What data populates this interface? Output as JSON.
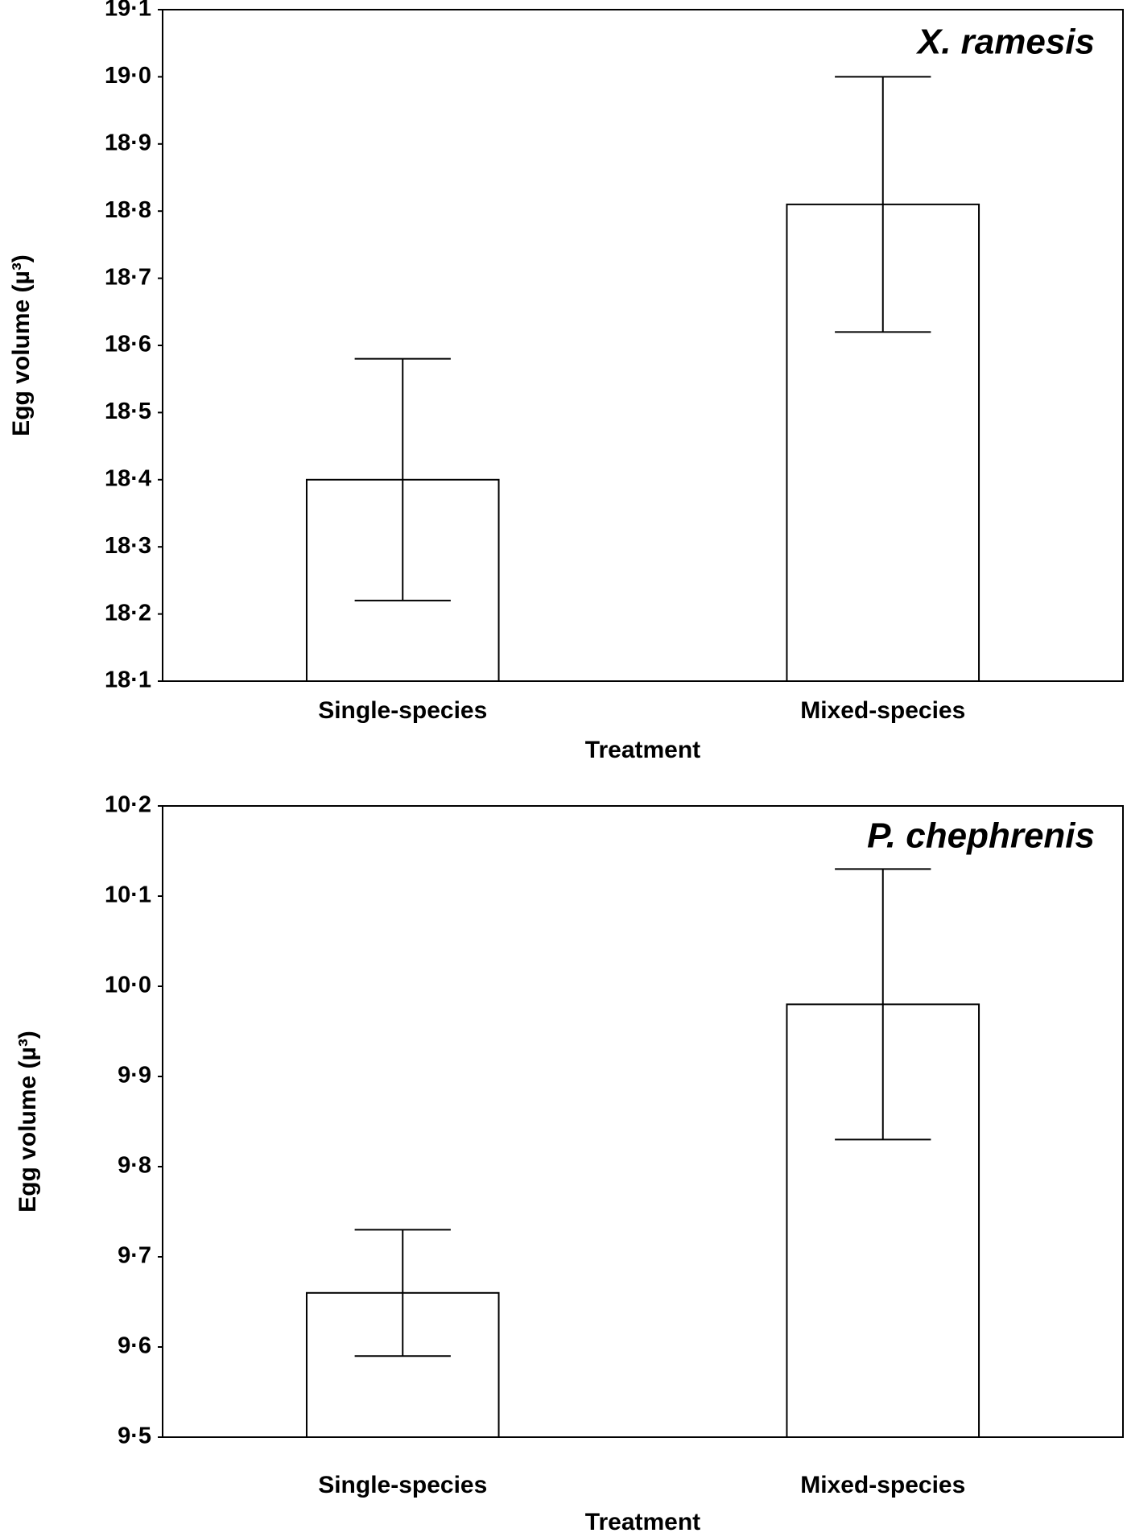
{
  "chart_data": [
    {
      "type": "bar",
      "annotation": "X. ramesis",
      "x_label": "Treatment",
      "y_label": "Egg volume (µ³)",
      "categories": [
        "Single-species",
        "Mixed-species"
      ],
      "values": [
        18.4,
        18.81
      ],
      "errors": [
        0.18,
        0.19
      ],
      "color": "#ffffff",
      "ylim": [
        18.1,
        19.1
      ],
      "yticks": [
        {
          "value": 18.1,
          "label": "18·1"
        },
        {
          "value": 18.2,
          "label": "18·2"
        },
        {
          "value": 18.3,
          "label": "18·3"
        },
        {
          "value": 18.4,
          "label": "18·4"
        },
        {
          "value": 18.5,
          "label": "18·5"
        },
        {
          "value": 18.6,
          "label": "18·6"
        },
        {
          "value": 18.7,
          "label": "18·7"
        },
        {
          "value": 18.8,
          "label": "18·8"
        },
        {
          "value": 18.9,
          "label": "18·9"
        },
        {
          "value": 19.0,
          "label": "19·0"
        },
        {
          "value": 19.1,
          "label": "19·1"
        }
      ]
    },
    {
      "type": "bar",
      "annotation": "P. chephrenis",
      "x_label": "Treatment",
      "y_label": "Egg volume (µ³)",
      "categories": [
        "Single-species",
        "Mixed-species"
      ],
      "values": [
        9.66,
        9.98
      ],
      "errors": [
        0.07,
        0.15
      ],
      "color": "#ffffff",
      "ylim": [
        9.5,
        10.2
      ],
      "yticks": [
        {
          "value": 9.5,
          "label": "9·5"
        },
        {
          "value": 9.6,
          "label": "9·6"
        },
        {
          "value": 9.7,
          "label": "9·7"
        },
        {
          "value": 9.8,
          "label": "9·8"
        },
        {
          "value": 9.9,
          "label": "9·9"
        },
        {
          "value": 10.0,
          "label": "10·0"
        },
        {
          "value": 10.1,
          "label": "10·1"
        },
        {
          "value": 10.2,
          "label": "10·2"
        }
      ]
    }
  ]
}
